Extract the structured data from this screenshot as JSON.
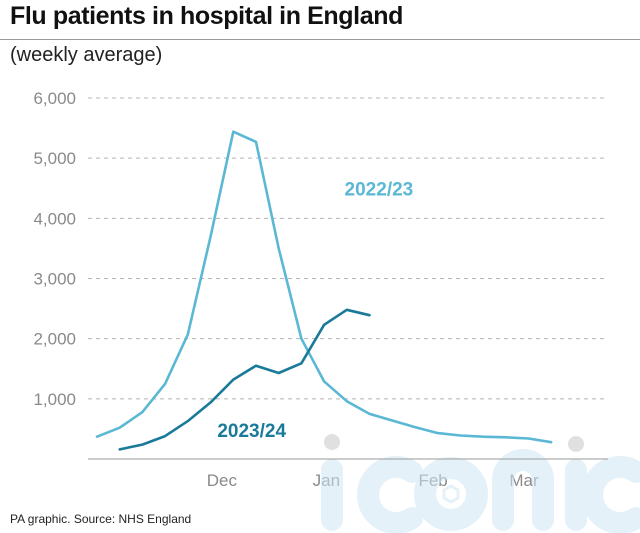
{
  "title": "Flu patients in hospital in England",
  "subtitle": "(weekly average)",
  "source": "PA graphic. Source: NHS England",
  "watermark_text": "iconic",
  "chart_data": {
    "type": "line",
    "title": "Flu patients in hospital in England",
    "subtitle": "(weekly average)",
    "xlabel": "",
    "ylabel": "",
    "ylim": [
      0,
      6000
    ],
    "yticks": [
      {
        "value": 1000,
        "label": "1,000"
      },
      {
        "value": 2000,
        "label": "2,000"
      },
      {
        "value": 3000,
        "label": "3,000"
      },
      {
        "value": 4000,
        "label": "4,000"
      },
      {
        "value": 5000,
        "label": "5,000"
      },
      {
        "value": 6000,
        "label": "6,000"
      }
    ],
    "x_unit": "week",
    "xlim": [
      0,
      22.5
    ],
    "xticks": [
      {
        "value": 5.5,
        "label": "Dec"
      },
      {
        "value": 10.1,
        "label": "Jan"
      },
      {
        "value": 14.8,
        "label": "Feb"
      },
      {
        "value": 18.8,
        "label": "Mar"
      }
    ],
    "grid": "horizontal dashed",
    "legend": "inline labels",
    "series": [
      {
        "name": "2022/23",
        "color": "#5bb8d4",
        "label_value": {
          "x": 10.9,
          "y": 4500
        },
        "x": [
          0,
          1,
          2,
          3,
          4,
          5,
          6,
          7,
          8,
          9,
          10,
          11,
          12,
          13,
          14,
          15,
          16,
          17,
          18,
          19,
          20
        ],
        "y": [
          370,
          520,
          780,
          1250,
          2070,
          3700,
          5440,
          5270,
          3500,
          2000,
          1290,
          960,
          750,
          640,
          530,
          430,
          390,
          370,
          360,
          340,
          280
        ]
      },
      {
        "name": "2023/24",
        "color": "#1a7a99",
        "label_value": {
          "x": 5.3,
          "y": 480
        },
        "x": [
          1,
          2,
          3,
          4,
          5,
          6,
          7,
          8,
          9,
          10,
          11,
          12
        ],
        "y": [
          160,
          240,
          380,
          630,
          940,
          1320,
          1550,
          1430,
          1590,
          2230,
          2480,
          2390
        ]
      }
    ]
  }
}
